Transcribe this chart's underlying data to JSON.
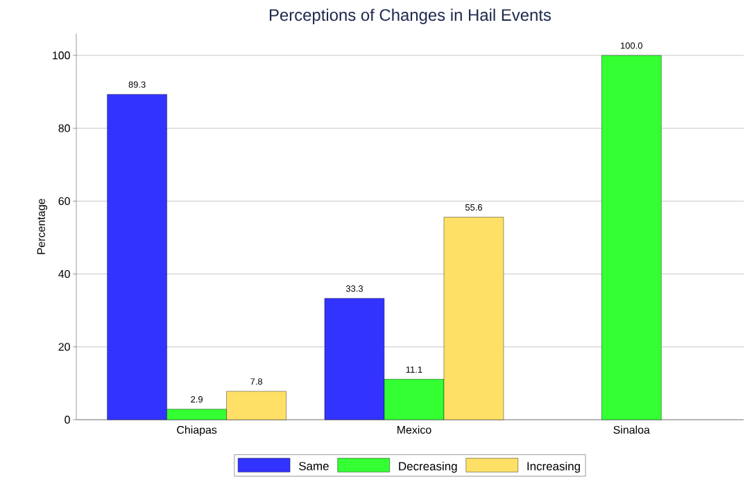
{
  "chart_data": {
    "type": "bar",
    "title": "Perceptions of Changes in Hail Events",
    "ylabel": "Percentage",
    "categories": [
      "Chiapas",
      "Mexico",
      "Sinaloa"
    ],
    "series": [
      {
        "name": "Same",
        "color": "#3333ff",
        "values": [
          89.3,
          33.3,
          null
        ],
        "value_labels": [
          "89.3",
          "33.3",
          null
        ]
      },
      {
        "name": "Decreasing",
        "color": "#33ff33",
        "values": [
          2.9,
          11.1,
          100.0
        ],
        "value_labels": [
          "2.9",
          "11.1",
          "100.0"
        ]
      },
      {
        "name": "Increasing",
        "color": "#ffe066",
        "values": [
          7.8,
          55.6,
          null
        ],
        "value_labels": [
          "7.8",
          "55.6",
          null
        ]
      }
    ],
    "ylim": [
      0,
      106
    ],
    "yticks": [
      0,
      20,
      40,
      60,
      80,
      100
    ],
    "grid": "y",
    "legend": "bottom"
  }
}
